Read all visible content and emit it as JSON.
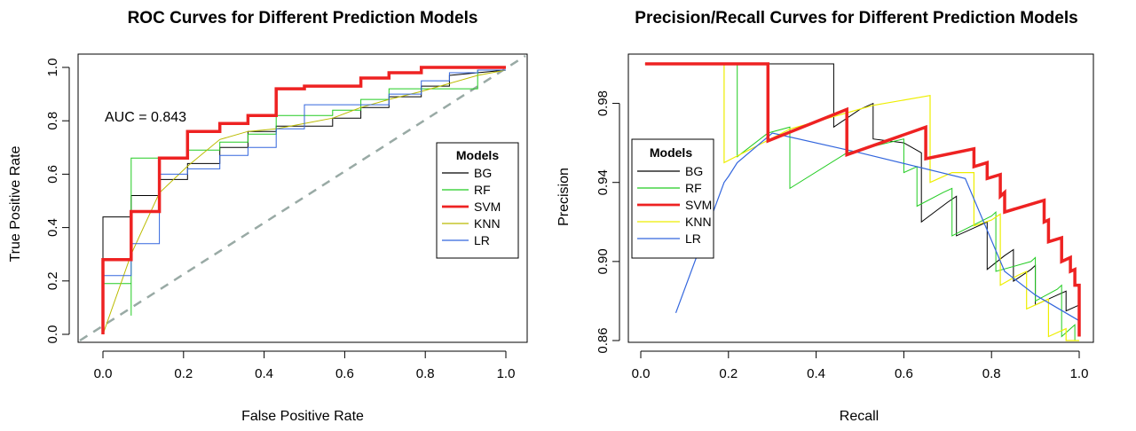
{
  "chart_data": [
    {
      "type": "line",
      "title": "ROC Curves for Different Prediction Models",
      "xlabel": "False Positive Rate",
      "ylabel": "True Positive Rate",
      "xlim": [
        0,
        1
      ],
      "ylim": [
        0,
        1
      ],
      "xticks": [
        "0.0",
        "0.2",
        "0.4",
        "0.6",
        "0.8",
        "1.0"
      ],
      "yticks": [
        "0.0",
        "0.2",
        "0.4",
        "0.6",
        "0.8",
        "1.0"
      ],
      "annotation": "AUC =  0.843",
      "legend_title": "Models",
      "legend_position": "right",
      "diagonal_reference": true,
      "series": [
        {
          "name": "BG",
          "color": "#000000",
          "width": 1,
          "x": [
            0,
            0,
            0.07,
            0.07,
            0.14,
            0.14,
            0.21,
            0.21,
            0.29,
            0.29,
            0.36,
            0.36,
            0.43,
            0.43,
            0.57,
            0.57,
            0.64,
            0.64,
            0.71,
            0.71,
            0.79,
            0.79,
            0.86,
            0.86,
            1.0
          ],
          "y": [
            0,
            0.44,
            0.44,
            0.52,
            0.52,
            0.58,
            0.58,
            0.64,
            0.64,
            0.7,
            0.7,
            0.76,
            0.76,
            0.78,
            0.78,
            0.81,
            0.81,
            0.85,
            0.85,
            0.89,
            0.89,
            0.93,
            0.93,
            0.97,
            0.99
          ]
        },
        {
          "name": "RF",
          "color": "#22cc22",
          "width": 1,
          "x": [
            0,
            0,
            0.07,
            0.07,
            0.07,
            0.14,
            0.14,
            0.21,
            0.21,
            0.29,
            0.29,
            0.36,
            0.36,
            0.43,
            0.43,
            0.57,
            0.57,
            0.64,
            0.64,
            0.71,
            0.71,
            0.86,
            0.86,
            0.93,
            0.93,
            1.0
          ],
          "y": [
            0,
            0.19,
            0.19,
            0.07,
            0.66,
            0.66,
            0.66,
            0.66,
            0.69,
            0.69,
            0.72,
            0.72,
            0.75,
            0.75,
            0.82,
            0.82,
            0.84,
            0.84,
            0.88,
            0.88,
            0.92,
            0.92,
            0.92,
            0.92,
            0.99,
            0.99
          ]
        },
        {
          "name": "SVM",
          "color": "#ee2222",
          "width": 3.5,
          "x": [
            0,
            0,
            0.07,
            0.07,
            0.14,
            0.14,
            0.21,
            0.21,
            0.29,
            0.29,
            0.36,
            0.36,
            0.43,
            0.43,
            0.5,
            0.5,
            0.64,
            0.64,
            0.71,
            0.71,
            0.79,
            0.79,
            0.93,
            0.93,
            1.0
          ],
          "y": [
            0,
            0.28,
            0.28,
            0.46,
            0.46,
            0.66,
            0.66,
            0.76,
            0.76,
            0.79,
            0.79,
            0.82,
            0.82,
            0.92,
            0.92,
            0.93,
            0.93,
            0.96,
            0.96,
            0.98,
            0.98,
            1.0,
            1.0,
            1.0,
            1.0
          ]
        },
        {
          "name": "KNN",
          "color": "#bbbb00",
          "width": 1,
          "x": [
            0,
            0.07,
            0.14,
            0.21,
            0.29,
            0.36,
            0.43,
            0.5,
            0.57,
            0.64,
            0.71,
            0.79,
            0.86,
            0.93,
            1.0
          ],
          "y": [
            0,
            0.3,
            0.53,
            0.63,
            0.73,
            0.76,
            0.77,
            0.79,
            0.81,
            0.85,
            0.88,
            0.91,
            0.94,
            0.97,
            0.99
          ]
        },
        {
          "name": "LR",
          "color": "#3366dd",
          "width": 1,
          "x": [
            0,
            0,
            0.07,
            0.07,
            0.14,
            0.14,
            0.21,
            0.21,
            0.29,
            0.29,
            0.36,
            0.36,
            0.43,
            0.43,
            0.5,
            0.5,
            0.71,
            0.71,
            0.79,
            0.79,
            0.86,
            0.86,
            0.93,
            0.93,
            1.0
          ],
          "y": [
            0,
            0.22,
            0.22,
            0.34,
            0.34,
            0.6,
            0.6,
            0.62,
            0.62,
            0.67,
            0.67,
            0.7,
            0.7,
            0.77,
            0.77,
            0.86,
            0.86,
            0.9,
            0.9,
            0.95,
            0.95,
            0.98,
            0.98,
            0.99,
            0.99
          ]
        }
      ]
    },
    {
      "type": "line",
      "title": "Precision/Recall Curves for Different Prediction Models",
      "xlabel": "Recall",
      "ylabel": "Precision",
      "xlim": [
        0,
        1
      ],
      "ylim": [
        0.86,
        1.0
      ],
      "xticks": [
        "0.0",
        "0.2",
        "0.4",
        "0.6",
        "0.8",
        "1.0"
      ],
      "yticks": [
        "0.86",
        "0.90",
        "0.94",
        "0.98"
      ],
      "legend_title": "Models",
      "legend_position": "left",
      "series": [
        {
          "name": "BG",
          "color": "#000000",
          "width": 1,
          "x": [
            0.01,
            0.44,
            0.44,
            0.5,
            0.53,
            0.53,
            0.6,
            0.64,
            0.64,
            0.7,
            0.72,
            0.72,
            0.79,
            0.79,
            0.83,
            0.85,
            0.85,
            0.89,
            0.9,
            0.9,
            0.95,
            0.97,
            0.97,
            1.0
          ],
          "y": [
            1.0,
            1.0,
            0.968,
            0.977,
            0.98,
            0.962,
            0.96,
            0.955,
            0.92,
            0.93,
            0.933,
            0.913,
            0.92,
            0.896,
            0.903,
            0.906,
            0.89,
            0.896,
            0.898,
            0.878,
            0.883,
            0.885,
            0.875,
            0.878
          ]
        },
        {
          "name": "RF",
          "color": "#22cc22",
          "width": 1,
          "x": [
            0.01,
            0.22,
            0.22,
            0.29,
            0.29,
            0.34,
            0.34,
            0.47,
            0.6,
            0.6,
            0.63,
            0.63,
            0.69,
            0.71,
            0.71,
            0.8,
            0.81,
            0.81,
            0.89,
            0.9,
            0.9,
            0.95,
            0.96,
            0.96,
            0.99,
            0.99
          ],
          "y": [
            1.0,
            1.0,
            0.953,
            0.965,
            0.965,
            0.968,
            0.937,
            0.955,
            0.962,
            0.945,
            0.948,
            0.928,
            0.935,
            0.937,
            0.913,
            0.923,
            0.925,
            0.895,
            0.9,
            0.902,
            0.88,
            0.886,
            0.888,
            0.862,
            0.868,
            0.86
          ]
        },
        {
          "name": "SVM",
          "color": "#ee2222",
          "width": 3.5,
          "x": [
            0.01,
            0.29,
            0.29,
            0.47,
            0.47,
            0.65,
            0.65,
            0.76,
            0.76,
            0.79,
            0.79,
            0.82,
            0.82,
            0.83,
            0.83,
            0.92,
            0.92,
            0.93,
            0.93,
            0.96,
            0.96,
            0.98,
            0.98,
            0.99,
            0.99,
            1.0,
            1.0
          ],
          "y": [
            1.0,
            1.0,
            0.961,
            0.977,
            0.954,
            0.968,
            0.952,
            0.957,
            0.948,
            0.95,
            0.942,
            0.944,
            0.933,
            0.935,
            0.925,
            0.931,
            0.92,
            0.921,
            0.91,
            0.912,
            0.9,
            0.902,
            0.895,
            0.896,
            0.888,
            0.888,
            0.862
          ]
        },
        {
          "name": "KNN",
          "color": "#eeee00",
          "width": 1.2,
          "x": [
            0.01,
            0.19,
            0.19,
            0.34,
            0.53,
            0.66,
            0.66,
            0.71,
            0.76,
            0.76,
            0.8,
            0.82,
            0.82,
            0.86,
            0.88,
            0.88,
            0.93,
            0.93,
            0.97,
            0.97,
            1.0
          ],
          "y": [
            1.0,
            1.0,
            0.95,
            0.967,
            0.979,
            0.984,
            0.94,
            0.945,
            0.945,
            0.918,
            0.921,
            0.924,
            0.888,
            0.893,
            0.895,
            0.876,
            0.881,
            0.862,
            0.866,
            0.86,
            0.86
          ]
        },
        {
          "name": "LR",
          "color": "#3366dd",
          "width": 1.2,
          "x": [
            0.08,
            0.19,
            0.2,
            0.22,
            0.3,
            0.5,
            0.74,
            0.83,
            0.9,
            1.0
          ],
          "y": [
            0.874,
            0.94,
            0.943,
            0.95,
            0.965,
            0.955,
            0.942,
            0.895,
            0.883,
            0.87
          ]
        }
      ]
    }
  ]
}
